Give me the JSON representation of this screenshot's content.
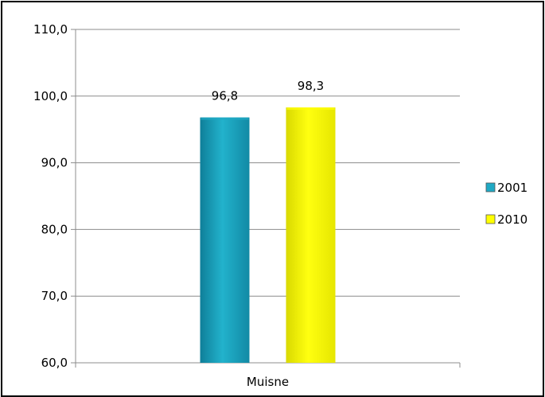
{
  "chart_data": {
    "type": "bar",
    "categories": [
      "Muisne"
    ],
    "series": [
      {
        "name": "2001",
        "values": [
          96.8
        ],
        "color": "#1fa9c4",
        "data_label": "96,8"
      },
      {
        "name": "2010",
        "values": [
          98.3
        ],
        "color": "#ffff00",
        "data_label": "98,3"
      }
    ],
    "ylim": [
      60,
      110
    ],
    "y_ticks": [
      110,
      100,
      90,
      80,
      70,
      60
    ],
    "y_tick_labels": [
      "110,0",
      "100,0",
      "90,0",
      "80,0",
      "70,0",
      "60,0"
    ],
    "grid": true,
    "legend": "right"
  }
}
